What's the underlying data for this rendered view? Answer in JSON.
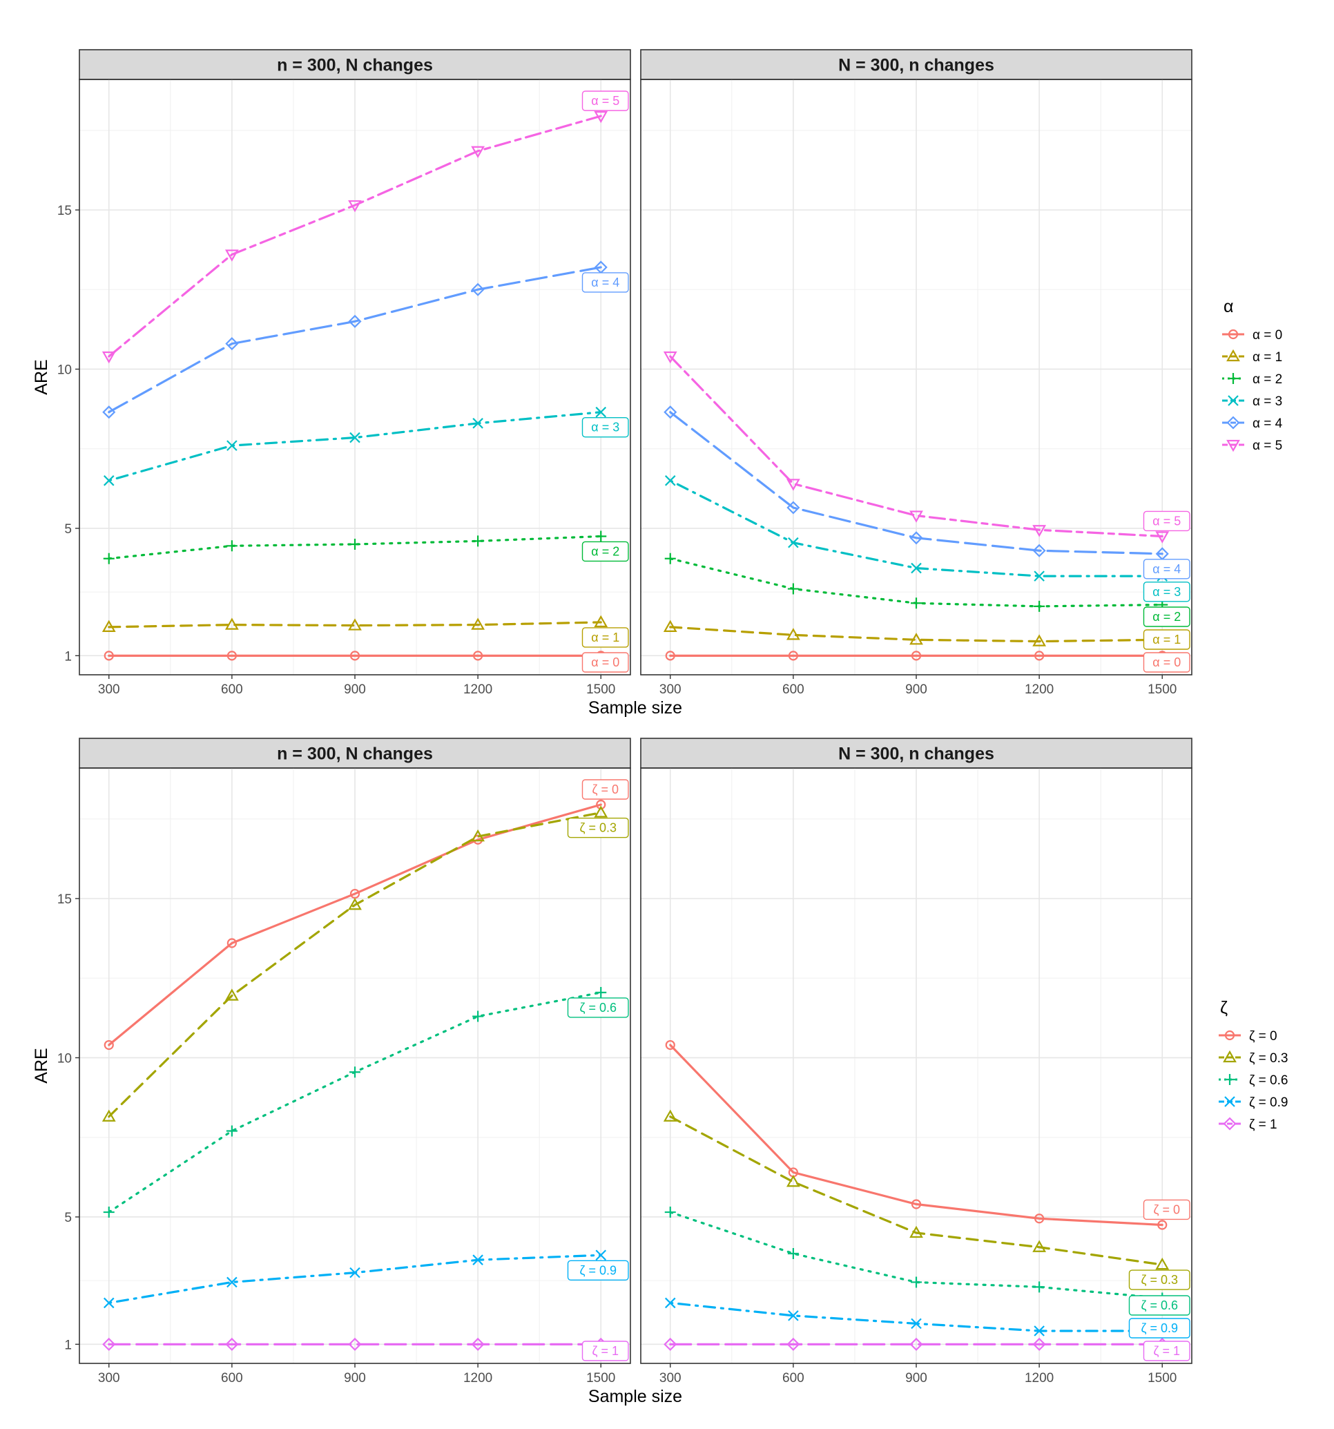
{
  "chart_data": [
    {
      "type": "line",
      "facet": "n = 300, N changes",
      "ylabel": "ARE",
      "x": [
        300,
        600,
        900,
        1200,
        1500
      ],
      "ylim": [
        0.4,
        19.1
      ],
      "yticks": [
        1,
        5,
        10,
        15
      ],
      "series": [
        {
          "name": "α = 0",
          "values": [
            1.0,
            1.0,
            1.0,
            1.0,
            1.0
          ]
        },
        {
          "name": "α = 1",
          "values": [
            1.9,
            1.97,
            1.95,
            1.97,
            2.05
          ]
        },
        {
          "name": "α = 2",
          "values": [
            4.05,
            4.45,
            4.5,
            4.6,
            4.75
          ]
        },
        {
          "name": "α = 3",
          "values": [
            6.5,
            7.6,
            7.85,
            8.3,
            8.65
          ]
        },
        {
          "name": "α = 4",
          "values": [
            8.65,
            10.8,
            11.5,
            12.5,
            13.2
          ]
        },
        {
          "name": "α = 5",
          "values": [
            10.4,
            13.6,
            15.15,
            16.85,
            17.95
          ]
        }
      ]
    },
    {
      "type": "line",
      "facet": "N = 300, n changes",
      "x": [
        300,
        600,
        900,
        1200,
        1500
      ],
      "ylim": [
        0.4,
        19.1
      ],
      "series": [
        {
          "name": "α = 0",
          "values": [
            1.0,
            1.0,
            1.0,
            1.0,
            1.0
          ]
        },
        {
          "name": "α = 1",
          "values": [
            1.9,
            1.65,
            1.5,
            1.45,
            1.5
          ]
        },
        {
          "name": "α = 2",
          "values": [
            4.05,
            3.1,
            2.65,
            2.55,
            2.6
          ]
        },
        {
          "name": "α = 3",
          "values": [
            6.5,
            4.55,
            3.75,
            3.5,
            3.5
          ]
        },
        {
          "name": "α = 4",
          "values": [
            8.65,
            5.65,
            4.7,
            4.3,
            4.2
          ]
        },
        {
          "name": "α = 5",
          "values": [
            10.4,
            6.4,
            5.4,
            4.95,
            4.75
          ]
        }
      ]
    },
    {
      "type": "line",
      "facet": "n = 300, N changes",
      "ylabel": "ARE",
      "x": [
        300,
        600,
        900,
        1200,
        1500
      ],
      "ylim": [
        0.4,
        19.1
      ],
      "series": [
        {
          "name": "ζ = 0",
          "values": [
            10.4,
            13.6,
            15.15,
            16.85,
            17.95
          ]
        },
        {
          "name": "ζ = 0.3",
          "values": [
            8.15,
            11.95,
            14.8,
            16.95,
            17.7
          ]
        },
        {
          "name": "ζ = 0.6",
          "values": [
            5.15,
            7.7,
            9.55,
            11.3,
            12.05
          ]
        },
        {
          "name": "ζ = 0.9",
          "values": [
            2.3,
            2.95,
            3.25,
            3.65,
            3.8
          ]
        },
        {
          "name": "ζ = 1",
          "values": [
            1.0,
            1.0,
            1.0,
            1.0,
            1.0
          ]
        }
      ]
    },
    {
      "type": "line",
      "facet": "N = 300, n changes",
      "x": [
        300,
        600,
        900,
        1200,
        1500
      ],
      "ylim": [
        0.4,
        19.1
      ],
      "series": [
        {
          "name": "ζ = 0",
          "values": [
            10.4,
            6.4,
            5.4,
            4.95,
            4.75
          ]
        },
        {
          "name": "ζ = 0.3",
          "values": [
            8.15,
            6.1,
            4.5,
            4.05,
            3.5
          ]
        },
        {
          "name": "ζ = 0.6",
          "values": [
            5.15,
            3.85,
            2.95,
            2.8,
            2.45
          ]
        },
        {
          "name": "ζ = 0.9",
          "values": [
            2.3,
            1.9,
            1.65,
            1.42,
            1.42
          ]
        },
        {
          "name": "ζ = 1",
          "values": [
            1.0,
            1.0,
            1.0,
            1.0,
            1.0
          ]
        }
      ]
    }
  ],
  "xlabel": "Sample size",
  "ylabel": "ARE",
  "xtick_labels": [
    "300",
    "600",
    "900",
    "1200",
    "1500"
  ],
  "ytick_labels": [
    "1",
    "5",
    "10",
    "15"
  ],
  "legends": [
    {
      "title": "α",
      "items": [
        "α = 0",
        "α = 1",
        "α = 2",
        "α = 3",
        "α = 4",
        "α = 5"
      ],
      "end_labels": [
        "α = 0",
        "α = 1",
        "α = 2",
        "α = 3",
        "α = 4",
        "α = 5"
      ]
    },
    {
      "title": "ζ",
      "items": [
        "ζ = 0",
        "ζ = 0.3",
        "ζ = 0.6",
        "ζ = 0.9",
        "ζ = 1"
      ],
      "end_labels": [
        "ζ = 0",
        "ζ = 0.3",
        "ζ = 0.6",
        "ζ = 0.9",
        "ζ = 1"
      ]
    }
  ],
  "styles": {
    "alpha": [
      {
        "color": "#F8766D",
        "dash": "solid",
        "marker": "circle"
      },
      {
        "color": "#B79F00",
        "dash": "dashed",
        "marker": "triangle"
      },
      {
        "color": "#00BA38",
        "dash": "dotted",
        "marker": "plus"
      },
      {
        "color": "#00BFC4",
        "dash": "dotdash",
        "marker": "cross"
      },
      {
        "color": "#619CFF",
        "dash": "longdash",
        "marker": "diamond"
      },
      {
        "color": "#F564E3",
        "dash": "twodash",
        "marker": "triangle-down"
      }
    ],
    "zeta": [
      {
        "color": "#F8766D",
        "dash": "solid",
        "marker": "circle"
      },
      {
        "color": "#A3A500",
        "dash": "dashed",
        "marker": "triangle"
      },
      {
        "color": "#00BF7D",
        "dash": "dotted",
        "marker": "plus"
      },
      {
        "color": "#00B0F6",
        "dash": "dotdash",
        "marker": "cross"
      },
      {
        "color": "#E76BF3",
        "dash": "longdash",
        "marker": "diamond"
      }
    ]
  },
  "background": "#ffffff",
  "strip_fill": "#D9D9D9",
  "grid": true
}
